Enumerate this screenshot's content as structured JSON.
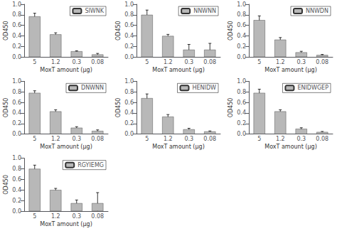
{
  "chart_data": [
    {
      "type": "bar",
      "categories": [
        "5",
        "1.2",
        "0.3",
        "0.08"
      ],
      "xlabel": "MoxT amount (µg)",
      "ylabel": "OD450",
      "series": [
        {
          "name": "SIWNK",
          "color": "#b8b8b8",
          "values": [
            0.77,
            0.43,
            0.11,
            0.05
          ],
          "errors": [
            0.06,
            0.03,
            0.01,
            0.02
          ]
        }
      ],
      "ylim": [
        0.0,
        1.0
      ],
      "yticks": [
        {
          "value": 0.0,
          "label": "0.0"
        },
        0.2,
        0.4,
        0.6,
        0.8,
        {
          "value": 1.0,
          "label": "1.0"
        }
      ],
      "grid": false,
      "legend": "upper right"
    },
    {
      "type": "bar",
      "categories": [
        "5",
        "1.2",
        "0.3",
        "0.08"
      ],
      "xlabel": "MoxT amount (µg)",
      "ylabel": "OD450",
      "series": [
        {
          "name": "NNWNN",
          "color": "#b8b8b8",
          "values": [
            0.8,
            0.4,
            0.14,
            0.14
          ],
          "errors": [
            0.09,
            0.03,
            0.1,
            0.12
          ]
        }
      ],
      "ylim": [
        0.0,
        1.0
      ],
      "yticks": [
        {
          "value": 0.0,
          "label": "0.0"
        },
        0.2,
        0.4,
        0.6,
        0.8,
        {
          "value": 1.0,
          "label": "1.0"
        }
      ],
      "grid": false,
      "legend": "upper right"
    },
    {
      "type": "bar",
      "categories": [
        "5",
        "1.2",
        "0.3",
        "0.08"
      ],
      "xlabel": "MoxT amount (µg)",
      "ylabel": "OD450",
      "series": [
        {
          "name": "NNWDN",
          "color": "#b8b8b8",
          "values": [
            0.7,
            0.33,
            0.09,
            0.04
          ],
          "errors": [
            0.08,
            0.04,
            0.02,
            0.01
          ]
        }
      ],
      "ylim": [
        0.0,
        1.0
      ],
      "yticks": [
        {
          "value": 0.0,
          "label": "0.0"
        },
        0.2,
        0.4,
        0.6,
        0.8,
        {
          "value": 1.0,
          "label": "1.0"
        }
      ],
      "grid": false,
      "legend": "upper right"
    },
    {
      "type": "bar",
      "categories": [
        "5",
        "1.2",
        "0.3",
        "0.08"
      ],
      "xlabel": "MoxT amount (µg)",
      "ylabel": "OD450",
      "series": [
        {
          "name": "DNWNN",
          "color": "#b8b8b8",
          "values": [
            0.78,
            0.43,
            0.12,
            0.06
          ],
          "errors": [
            0.04,
            0.03,
            0.02,
            0.02
          ]
        }
      ],
      "ylim": [
        0.0,
        1.0
      ],
      "yticks": [
        {
          "value": 0.0,
          "label": "0.0"
        },
        0.2,
        0.4,
        0.6,
        0.8,
        {
          "value": 1.0,
          "label": "1.0"
        }
      ],
      "grid": false,
      "legend": "upper right"
    },
    {
      "type": "bar",
      "categories": [
        "5",
        "1.2",
        "0.3",
        "0.08"
      ],
      "xlabel": "MoxT amount (µg)",
      "ylabel": "OD450",
      "series": [
        {
          "name": "HENIDW",
          "color": "#b8b8b8",
          "values": [
            0.68,
            0.33,
            0.09,
            0.05
          ],
          "errors": [
            0.08,
            0.04,
            0.02,
            0.01
          ]
        }
      ],
      "ylim": [
        0.0,
        1.0
      ],
      "yticks": [
        {
          "value": 0.0,
          "label": "0.0"
        },
        0.2,
        0.4,
        0.6,
        0.8,
        {
          "value": 1.0,
          "label": "1.0"
        }
      ],
      "grid": false,
      "legend": "upper right"
    },
    {
      "type": "bar",
      "categories": [
        "5",
        "1.2",
        "0.3",
        "0.08"
      ],
      "xlabel": "MoxT amount (µg)",
      "ylabel": "OD450",
      "series": [
        {
          "name": "ENIDWGEP",
          "color": "#b8b8b8",
          "values": [
            0.78,
            0.43,
            0.1,
            0.04
          ],
          "errors": [
            0.07,
            0.03,
            0.02,
            0.01
          ]
        }
      ],
      "ylim": [
        0.0,
        1.0
      ],
      "yticks": [
        {
          "value": 0.0,
          "label": "0.0"
        },
        0.2,
        0.4,
        0.6,
        0.8,
        {
          "value": 1.0,
          "label": "1.0"
        }
      ],
      "grid": false,
      "legend": "upper right"
    },
    {
      "type": "bar",
      "categories": [
        "5",
        "1.2",
        "0.3",
        "0.08"
      ],
      "xlabel": "MoxT amount (µg)",
      "ylabel": "OD450",
      "series": [
        {
          "name": "RGYIEMG",
          "color": "#b8b8b8",
          "values": [
            0.8,
            0.4,
            0.15,
            0.15
          ],
          "errors": [
            0.07,
            0.03,
            0.06,
            0.2
          ]
        }
      ],
      "ylim": [
        0.0,
        1.0
      ],
      "yticks": [
        {
          "value": 0.0,
          "label": "0.0"
        },
        0.2,
        0.4,
        0.6,
        0.8,
        {
          "value": 1.0,
          "label": "1.0"
        }
      ],
      "grid": false,
      "legend": "upper right"
    }
  ]
}
